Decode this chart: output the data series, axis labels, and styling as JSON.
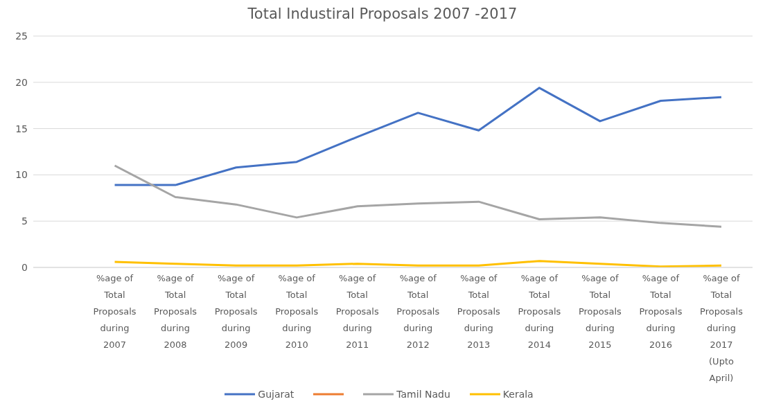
{
  "chart_data": {
    "type": "line",
    "title": "Total Industiral Proposals 2007 -2017",
    "categories": [
      null,
      "%age of Total Proposals during 2007",
      "%age of Total Proposals during 2008",
      "%age of Total Proposals during 2009",
      "%age of Total Proposals during 2010",
      "%age of Total Proposals during 2011",
      "%age of Total Proposals during 2012",
      "%age of Total Proposals during 2013",
      "%age of Total Proposals during 2014",
      "%age of Total Proposals during 2015",
      "%age of Total Proposals during 2016",
      "%age of Total Proposals during 2017 (Upto April)"
    ],
    "series": [
      {
        "name": "Gujarat",
        "color": "#4472c4",
        "values": [
          null,
          8.9,
          8.9,
          10.8,
          11.4,
          14.1,
          16.7,
          14.8,
          19.4,
          15.8,
          18.0,
          18.4
        ]
      },
      {
        "color": "#ed7d31",
        "values": [
          null,
          null,
          null,
          null,
          null,
          null,
          null,
          null,
          null,
          null,
          null,
          null
        ]
      },
      {
        "name": "Tamil Nadu",
        "color": "#a5a5a5",
        "values": [
          null,
          11.0,
          7.6,
          6.8,
          5.4,
          6.6,
          6.9,
          7.1,
          5.2,
          5.4,
          4.8,
          4.4
        ]
      },
      {
        "name": "Kerala",
        "color": "#ffc000",
        "values": [
          null,
          0.6,
          0.4,
          0.2,
          0.2,
          0.4,
          0.2,
          0.2,
          0.7,
          0.4,
          0.1,
          0.2
        ]
      }
    ],
    "ylim": [
      0,
      25
    ],
    "yticks": [
      0,
      5,
      10,
      15,
      20,
      25
    ],
    "grid": "y",
    "legend": "bottom",
    "marker": "none",
    "line_style": "solid"
  }
}
